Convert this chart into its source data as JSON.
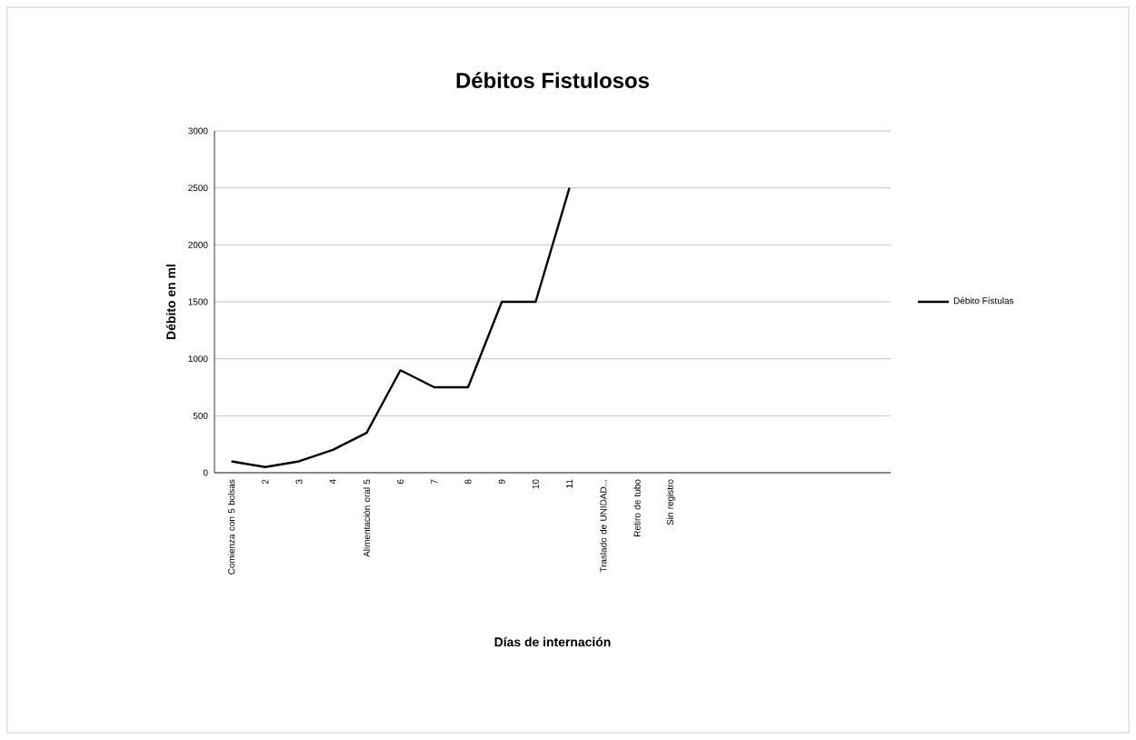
{
  "chart_data": {
    "type": "line",
    "title": "Débitos Fistulosos",
    "xlabel": "Días de internación",
    "ylabel": "Débito en ml",
    "categories": [
      "Comienza con 5 bolsas",
      "2",
      "3",
      "4",
      "Alimentación oral 5",
      "6",
      "7",
      "8",
      "9",
      "10",
      "11",
      "Traslado de UNIDAD...",
      "Retiro de tubo",
      "Sin registro",
      null,
      null,
      null,
      null,
      null,
      null
    ],
    "series": [
      {
        "name": "Débito Fístulas",
        "color": "#000000",
        "values": [
          100,
          50,
          100,
          200,
          350,
          900,
          750,
          750,
          1500,
          1500,
          2500,
          null,
          null,
          null,
          null,
          null,
          null,
          null,
          null,
          null
        ]
      }
    ],
    "ylim": [
      0,
      3000
    ],
    "yticks": [
      0,
      500,
      1000,
      1500,
      2000,
      2500,
      3000
    ],
    "grid": "y",
    "legend": "right",
    "marker": "none",
    "line_style": "solid"
  }
}
